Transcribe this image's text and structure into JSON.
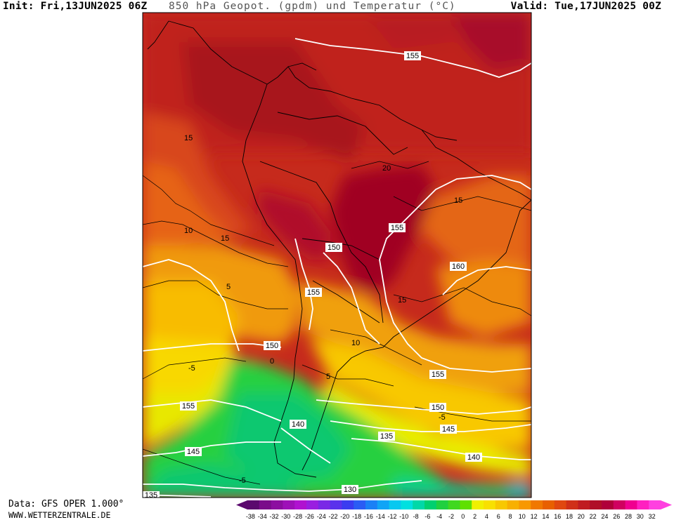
{
  "header": {
    "init": "Init: Fri,13JUN2025 06Z",
    "title": "850 hPa Geopot. (gpdm) und Temperatur (°C)",
    "valid": "Valid: Tue,17JUN2025 00Z"
  },
  "footer": {
    "data_source": "Data: GFS OPER 1.000°",
    "website": "WWW.WETTERZENTRALE.DE"
  },
  "map": {
    "region": "South America",
    "geopotential_labels": [
      {
        "text": "155",
        "id": "z155-top"
      },
      {
        "text": "155",
        "id": "z155-brazil"
      },
      {
        "text": "150",
        "id": "z150-andes"
      },
      {
        "text": "155",
        "id": "z155-chile"
      },
      {
        "text": "160",
        "id": "z160"
      },
      {
        "text": "150",
        "id": "z150-pac"
      },
      {
        "text": "155",
        "id": "z155-atl"
      },
      {
        "text": "155",
        "id": "z155-pac"
      },
      {
        "text": "150",
        "id": "z150-atl"
      },
      {
        "text": "140",
        "id": "z140-pat"
      },
      {
        "text": "145",
        "id": "z145-atl"
      },
      {
        "text": "135",
        "id": "z135"
      },
      {
        "text": "145",
        "id": "z145-pac"
      },
      {
        "text": "140",
        "id": "z140-atl"
      },
      {
        "text": "130",
        "id": "z130"
      },
      {
        "text": "135",
        "id": "z135-corner"
      }
    ],
    "temperature_labels": [
      {
        "text": "15",
        "id": "t15-west"
      },
      {
        "text": "20",
        "id": "t20"
      },
      {
        "text": "15",
        "id": "t15-east"
      },
      {
        "text": "10",
        "id": "t10-west"
      },
      {
        "text": "15",
        "id": "t15-mid"
      },
      {
        "text": "5",
        "id": "t5-west"
      },
      {
        "text": "15",
        "id": "t15-south"
      },
      {
        "text": "10",
        "id": "t10-arg"
      },
      {
        "text": "-5",
        "id": "tm5-pac"
      },
      {
        "text": "5",
        "id": "t5-arg"
      },
      {
        "text": "0",
        "id": "t0"
      },
      {
        "text": "-5",
        "id": "tm5-south"
      },
      {
        "text": "-5",
        "id": "tm5-bottom"
      }
    ]
  },
  "colorbar": {
    "unit": "°C",
    "ticks": [
      "-38",
      "-34",
      "-32",
      "-30",
      "-28",
      "-26",
      "-24",
      "-22",
      "-20",
      "-18",
      "-16",
      "-14",
      "-12",
      "-10",
      "-8",
      "-6",
      "-4",
      "-2",
      "0",
      "2",
      "4",
      "6",
      "8",
      "10",
      "12",
      "14",
      "16",
      "18",
      "20",
      "22",
      "24",
      "26",
      "28",
      "30",
      "32"
    ],
    "colors": [
      "#5b0a6e",
      "#7a0c8a",
      "#8c0ea0",
      "#9e10b8",
      "#b012d0",
      "#9a1ee0",
      "#7a28e6",
      "#5a32ec",
      "#3a3cf0",
      "#2a5cf4",
      "#1a80f6",
      "#10a4f6",
      "#08c8f0",
      "#00e0e0",
      "#00d8a8",
      "#00d070",
      "#20d040",
      "#40d820",
      "#60e000",
      "#f0f000",
      "#f8e000",
      "#f8c800",
      "#f8b000",
      "#f89800",
      "#f07800",
      "#e86000",
      "#e04810",
      "#d03018",
      "#c01c20",
      "#b00e28",
      "#b0003a",
      "#d00060",
      "#f00090",
      "#ff20c0",
      "#ff40e0"
    ]
  }
}
